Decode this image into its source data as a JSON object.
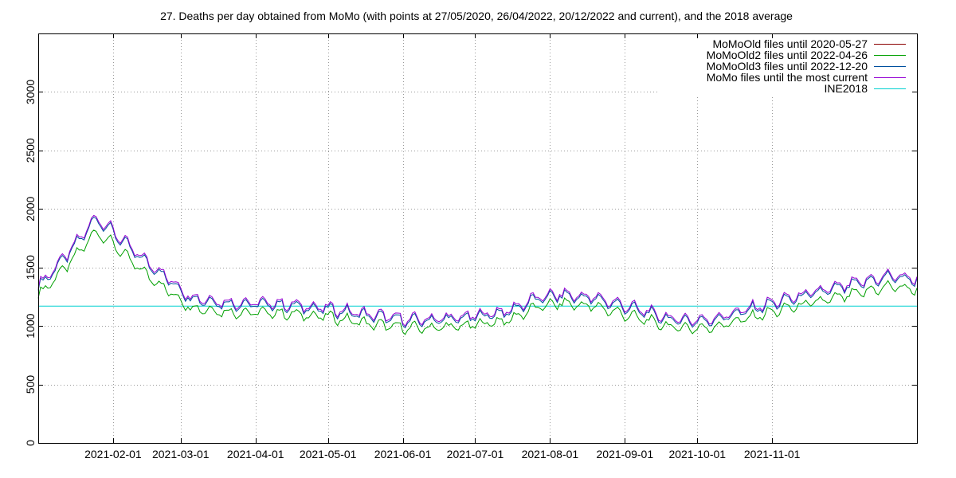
{
  "chart_data": {
    "type": "line",
    "title": "27. Deaths per day obtained from MoMo (with points at 27/05/2020, 26/04/2022, 20/12/2022 and current), and the 2018 average",
    "xlabel": "",
    "ylabel": "",
    "x_range": [
      "2021-01-01",
      "2021-12-31"
    ],
    "ylim": [
      0,
      3500
    ],
    "y_ticks": [
      0,
      500,
      1000,
      1500,
      2000,
      2500,
      3000
    ],
    "x_ticks": [
      "2021-02-01",
      "2021-03-01",
      "2021-04-01",
      "2021-05-01",
      "2021-06-01",
      "2021-07-01",
      "2021-08-01",
      "2021-09-01",
      "2021-10-01",
      "2021-11-01"
    ],
    "grid": true,
    "legend_position": "top-right",
    "weekly_amplitude_upper": 60,
    "weekly_amplitude_lower": 55,
    "anchor_dates": [
      "2021-01-01",
      "2021-01-15",
      "2021-01-25",
      "2021-02-01",
      "2021-02-10",
      "2021-02-22",
      "2021-03-05",
      "2021-03-20",
      "2021-04-10",
      "2021-05-01",
      "2021-05-20",
      "2021-06-05",
      "2021-06-25",
      "2021-07-15",
      "2021-07-25",
      "2021-08-05",
      "2021-08-20",
      "2021-09-05",
      "2021-09-20",
      "2021-10-05",
      "2021-10-20",
      "2021-11-05",
      "2021-11-20",
      "2021-12-05",
      "2021-12-20",
      "2021-12-31"
    ],
    "series": [
      {
        "name": "MoMoOld files until 2020-05-27",
        "color": "#8b0000",
        "drawn": false,
        "values": [
          1330,
          1650,
          1920,
          1800,
          1620,
          1430,
          1240,
          1190,
          1180,
          1140,
          1080,
          1040,
          1060,
          1120,
          1220,
          1260,
          1230,
          1140,
          1050,
          1040,
          1120,
          1210,
          1280,
          1350,
          1420,
          1390
        ]
      },
      {
        "name": "MoMoOld2 files until 2022-04-26",
        "color": "#00a000",
        "drawn": true,
        "values": [
          1260,
          1560,
          1810,
          1700,
          1520,
          1330,
          1160,
          1120,
          1110,
          1080,
          1010,
          980,
          995,
          1050,
          1150,
          1195,
          1165,
          1075,
          990,
          980,
          1055,
          1140,
          1205,
          1270,
          1340,
          1310
        ]
      },
      {
        "name": "MoMoOld3 files until 2022-12-20",
        "color": "#00509f",
        "drawn": true,
        "values": [
          1330,
          1650,
          1920,
          1800,
          1620,
          1430,
          1240,
          1190,
          1180,
          1140,
          1080,
          1040,
          1060,
          1120,
          1220,
          1260,
          1230,
          1140,
          1050,
          1040,
          1120,
          1210,
          1280,
          1350,
          1420,
          1390
        ]
      },
      {
        "name": "MoMo files until the most current",
        "color": "#9400d3",
        "drawn": true,
        "values": [
          1345,
          1665,
          1935,
          1815,
          1635,
          1445,
          1255,
          1205,
          1195,
          1155,
          1095,
          1055,
          1075,
          1135,
          1235,
          1275,
          1245,
          1155,
          1065,
          1055,
          1135,
          1225,
          1295,
          1365,
          1435,
          1405
        ]
      },
      {
        "name": "INE2018",
        "color": "#00d0d0",
        "drawn": true,
        "values": [
          1170,
          1170
        ]
      }
    ]
  }
}
